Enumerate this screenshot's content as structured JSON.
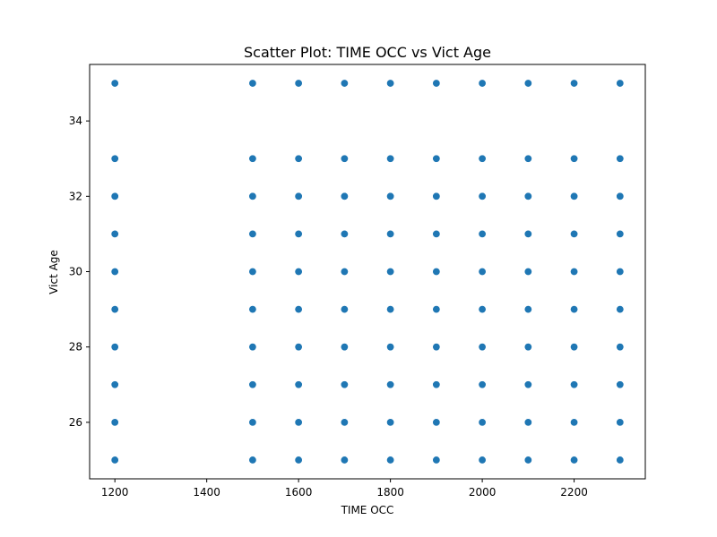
{
  "chart_data": {
    "type": "scatter",
    "title": "Scatter Plot: TIME OCC vs Vict Age",
    "xlabel": "TIME OCC",
    "ylabel": "Vict Age",
    "xlim": [
      1145,
      2355
    ],
    "ylim": [
      24.5,
      35.5
    ],
    "xticks": [
      1200,
      1400,
      1600,
      1800,
      2000,
      2200
    ],
    "yticks": [
      26,
      28,
      30,
      32,
      34
    ],
    "grid": false,
    "legend": false,
    "color": "#1f77b4",
    "points": [
      {
        "x": 1200,
        "y": 35
      },
      {
        "x": 1200,
        "y": 33
      },
      {
        "x": 1200,
        "y": 32
      },
      {
        "x": 1200,
        "y": 31
      },
      {
        "x": 1200,
        "y": 30
      },
      {
        "x": 1200,
        "y": 29
      },
      {
        "x": 1200,
        "y": 28
      },
      {
        "x": 1200,
        "y": 27
      },
      {
        "x": 1200,
        "y": 26
      },
      {
        "x": 1200,
        "y": 25
      },
      {
        "x": 1500,
        "y": 35
      },
      {
        "x": 1500,
        "y": 33
      },
      {
        "x": 1500,
        "y": 32
      },
      {
        "x": 1500,
        "y": 31
      },
      {
        "x": 1500,
        "y": 30
      },
      {
        "x": 1500,
        "y": 29
      },
      {
        "x": 1500,
        "y": 28
      },
      {
        "x": 1500,
        "y": 27
      },
      {
        "x": 1500,
        "y": 26
      },
      {
        "x": 1500,
        "y": 25
      },
      {
        "x": 1600,
        "y": 35
      },
      {
        "x": 1600,
        "y": 33
      },
      {
        "x": 1600,
        "y": 32
      },
      {
        "x": 1600,
        "y": 31
      },
      {
        "x": 1600,
        "y": 30
      },
      {
        "x": 1600,
        "y": 29
      },
      {
        "x": 1600,
        "y": 28
      },
      {
        "x": 1600,
        "y": 27
      },
      {
        "x": 1600,
        "y": 26
      },
      {
        "x": 1600,
        "y": 25
      },
      {
        "x": 1700,
        "y": 35
      },
      {
        "x": 1700,
        "y": 33
      },
      {
        "x": 1700,
        "y": 32
      },
      {
        "x": 1700,
        "y": 31
      },
      {
        "x": 1700,
        "y": 30
      },
      {
        "x": 1700,
        "y": 29
      },
      {
        "x": 1700,
        "y": 28
      },
      {
        "x": 1700,
        "y": 27
      },
      {
        "x": 1700,
        "y": 26
      },
      {
        "x": 1700,
        "y": 25
      },
      {
        "x": 1800,
        "y": 35
      },
      {
        "x": 1800,
        "y": 33
      },
      {
        "x": 1800,
        "y": 32
      },
      {
        "x": 1800,
        "y": 31
      },
      {
        "x": 1800,
        "y": 30
      },
      {
        "x": 1800,
        "y": 29
      },
      {
        "x": 1800,
        "y": 28
      },
      {
        "x": 1800,
        "y": 27
      },
      {
        "x": 1800,
        "y": 26
      },
      {
        "x": 1800,
        "y": 25
      },
      {
        "x": 1900,
        "y": 35
      },
      {
        "x": 1900,
        "y": 33
      },
      {
        "x": 1900,
        "y": 32
      },
      {
        "x": 1900,
        "y": 31
      },
      {
        "x": 1900,
        "y": 30
      },
      {
        "x": 1900,
        "y": 29
      },
      {
        "x": 1900,
        "y": 28
      },
      {
        "x": 1900,
        "y": 27
      },
      {
        "x": 1900,
        "y": 26
      },
      {
        "x": 1900,
        "y": 25
      },
      {
        "x": 2000,
        "y": 35
      },
      {
        "x": 2000,
        "y": 33
      },
      {
        "x": 2000,
        "y": 32
      },
      {
        "x": 2000,
        "y": 31
      },
      {
        "x": 2000,
        "y": 30
      },
      {
        "x": 2000,
        "y": 29
      },
      {
        "x": 2000,
        "y": 28
      },
      {
        "x": 2000,
        "y": 27
      },
      {
        "x": 2000,
        "y": 26
      },
      {
        "x": 2000,
        "y": 25
      },
      {
        "x": 2100,
        "y": 35
      },
      {
        "x": 2100,
        "y": 33
      },
      {
        "x": 2100,
        "y": 32
      },
      {
        "x": 2100,
        "y": 31
      },
      {
        "x": 2100,
        "y": 30
      },
      {
        "x": 2100,
        "y": 29
      },
      {
        "x": 2100,
        "y": 28
      },
      {
        "x": 2100,
        "y": 27
      },
      {
        "x": 2100,
        "y": 26
      },
      {
        "x": 2100,
        "y": 25
      },
      {
        "x": 2200,
        "y": 35
      },
      {
        "x": 2200,
        "y": 33
      },
      {
        "x": 2200,
        "y": 32
      },
      {
        "x": 2200,
        "y": 31
      },
      {
        "x": 2200,
        "y": 30
      },
      {
        "x": 2200,
        "y": 29
      },
      {
        "x": 2200,
        "y": 28
      },
      {
        "x": 2200,
        "y": 27
      },
      {
        "x": 2200,
        "y": 26
      },
      {
        "x": 2200,
        "y": 25
      },
      {
        "x": 2300,
        "y": 35
      },
      {
        "x": 2300,
        "y": 33
      },
      {
        "x": 2300,
        "y": 32
      },
      {
        "x": 2300,
        "y": 31
      },
      {
        "x": 2300,
        "y": 30
      },
      {
        "x": 2300,
        "y": 29
      },
      {
        "x": 2300,
        "y": 28
      },
      {
        "x": 2300,
        "y": 27
      },
      {
        "x": 2300,
        "y": 26
      },
      {
        "x": 2300,
        "y": 25
      }
    ]
  }
}
